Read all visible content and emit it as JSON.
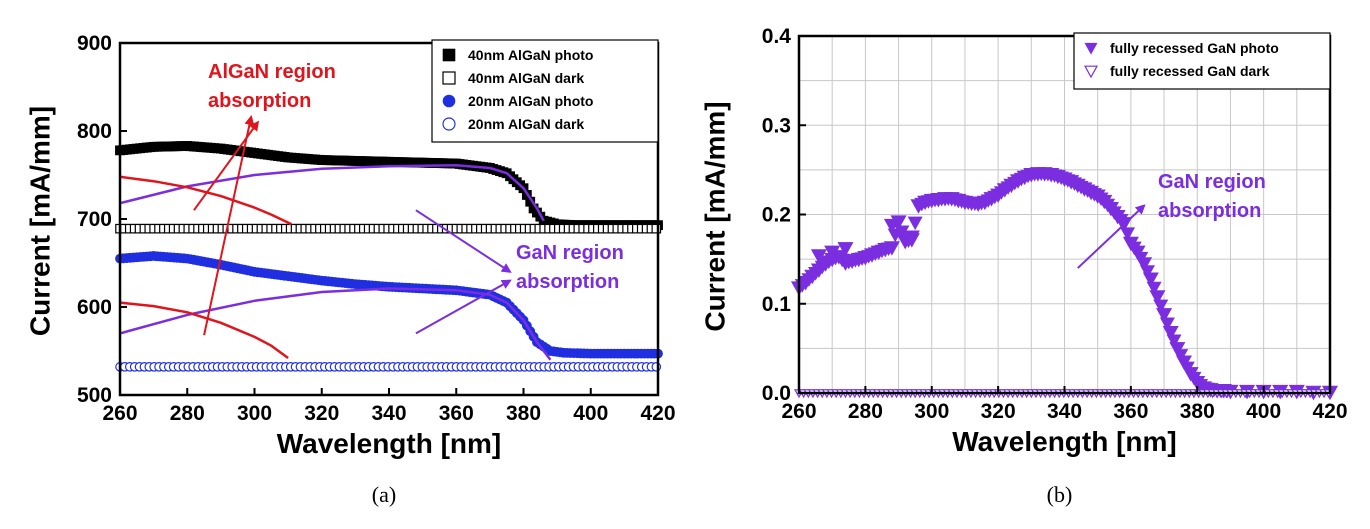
{
  "colors": {
    "black": "#000000",
    "blue": "#1f2fe0",
    "purple": "#7a2ee0",
    "red": "#e0141c",
    "grid": "#c8c8c8"
  },
  "chart_data": [
    {
      "type": "scatter",
      "caption": "(a)",
      "xlabel": "Wavelength [nm]",
      "ylabel": "Current [mA/mm]",
      "xlim": [
        260,
        420
      ],
      "ylim": [
        500,
        900
      ],
      "xticks": [
        260,
        280,
        300,
        320,
        340,
        360,
        380,
        400,
        420
      ],
      "yticks": [
        500,
        600,
        700,
        800,
        900
      ],
      "grid": false,
      "legend_position": "top-right",
      "legend": [
        {
          "label": "40nm AlGaN photo",
          "marker": "filled-square",
          "color": "#000000"
        },
        {
          "label": "40nm AlGaN dark",
          "marker": "open-square",
          "color": "#000000"
        },
        {
          "label": "20nm AlGaN photo",
          "marker": "filled-circle",
          "color": "#1f2fe0"
        },
        {
          "label": "20nm AlGaN dark",
          "marker": "open-circle",
          "color": "#1f2fe0"
        }
      ],
      "series": [
        {
          "name": "40nm AlGaN photo",
          "marker": "filled-square",
          "color": "#000000",
          "x": [
            260,
            270,
            280,
            290,
            300,
            310,
            320,
            330,
            340,
            350,
            360,
            370,
            375,
            380,
            383,
            386,
            390,
            395,
            400,
            410,
            420
          ],
          "y": [
            778,
            782,
            783,
            780,
            775,
            770,
            767,
            766,
            765,
            764,
            763,
            758,
            752,
            735,
            712,
            698,
            694,
            693,
            693,
            693,
            693
          ]
        },
        {
          "name": "40nm AlGaN dark",
          "marker": "open-square",
          "color": "#000000",
          "x": [
            260,
            420
          ],
          "y": [
            689,
            689
          ]
        },
        {
          "name": "20nm AlGaN photo",
          "marker": "filled-circle",
          "color": "#1f2fe0",
          "x": [
            260,
            270,
            280,
            290,
            300,
            310,
            320,
            330,
            340,
            350,
            360,
            370,
            375,
            380,
            384,
            388,
            392,
            400,
            410,
            420
          ],
          "y": [
            655,
            658,
            655,
            648,
            640,
            635,
            630,
            626,
            623,
            621,
            619,
            614,
            605,
            585,
            560,
            550,
            548,
            547,
            547,
            547
          ]
        },
        {
          "name": "20nm AlGaN dark",
          "marker": "open-circle",
          "color": "#1f2fe0",
          "x": [
            260,
            420
          ],
          "y": [
            532,
            532
          ]
        }
      ],
      "fit_lines": [
        {
          "color": "#7a2ee0",
          "x": [
            260,
            280,
            300,
            320,
            340,
            360,
            370,
            375,
            380,
            384,
            386
          ],
          "y": [
            718,
            737,
            750,
            757,
            760,
            761,
            758,
            752,
            735,
            712,
            698
          ]
        },
        {
          "color": "#7a2ee0",
          "x": [
            260,
            280,
            300,
            320,
            340,
            360,
            370,
            375,
            380,
            384,
            388
          ],
          "y": [
            570,
            591,
            607,
            617,
            621,
            619,
            614,
            605,
            585,
            560,
            540
          ]
        },
        {
          "color": "#e0141c",
          "x": [
            260,
            270,
            280,
            290,
            300,
            305,
            311
          ],
          "y": [
            748,
            743,
            736,
            726,
            713,
            705,
            694
          ]
        },
        {
          "color": "#e0141c",
          "x": [
            260,
            270,
            280,
            290,
            300,
            305,
            310
          ],
          "y": [
            605,
            601,
            594,
            582,
            566,
            556,
            542
          ]
        }
      ],
      "annotations": [
        {
          "text_lines": [
            "AlGaN region",
            "absorption"
          ],
          "color": "#e0141c",
          "arrows": [
            {
              "from": [
                282,
                710
              ],
              "to": [
                301,
                810
              ]
            },
            {
              "from": [
                285,
                568
              ],
              "to": [
                299,
                816
              ]
            }
          ]
        },
        {
          "text_lines": [
            "GaN  region",
            "absorption"
          ],
          "color": "#7a2ee0",
          "arrows": [
            {
              "from": [
                348,
                710
              ],
              "to": [
                376,
                640
              ]
            },
            {
              "from": [
                348,
                570
              ],
              "to": [
                376,
                630
              ]
            }
          ]
        }
      ]
    },
    {
      "type": "scatter",
      "caption": "(b)",
      "xlabel": "Wavelength [nm]",
      "ylabel": "Current [mA/mm]",
      "xlim": [
        260,
        420
      ],
      "ylim": [
        0.0,
        0.4
      ],
      "xticks": [
        260,
        280,
        300,
        320,
        340,
        360,
        380,
        400,
        420
      ],
      "yticks": [
        0.0,
        0.1,
        0.2,
        0.3,
        0.4
      ],
      "ytick_labels": [
        "0.0",
        "0.1",
        "0.2",
        "0.3",
        "0.4"
      ],
      "grid": true,
      "legend_position": "top-right",
      "legend": [
        {
          "label": "fully recessed GaN photo",
          "marker": "filled-down-triangle",
          "color": "#7a2ee0"
        },
        {
          "label": "fully recessed GaN dark",
          "marker": "open-down-triangle",
          "color": "#7a2ee0"
        }
      ],
      "series": [
        {
          "name": "fully recessed GaN photo",
          "marker": "filled-down-triangle",
          "color": "#7a2ee0",
          "x": [
            260,
            262,
            264,
            266,
            268,
            270,
            272,
            274,
            276,
            278,
            280,
            282,
            284,
            286,
            288,
            290,
            292,
            294,
            296,
            298,
            300,
            302,
            304,
            306,
            308,
            310,
            312,
            314,
            316,
            318,
            320,
            322,
            324,
            326,
            328,
            330,
            332,
            334,
            336,
            338,
            340,
            342,
            344,
            346,
            348,
            350,
            352,
            354,
            356,
            358,
            360,
            362,
            364,
            366,
            368,
            370,
            372,
            374,
            376,
            378,
            380,
            382,
            384,
            386,
            388,
            390,
            395,
            400,
            405,
            410,
            415,
            420
          ],
          "y": [
            0.118,
            0.124,
            0.131,
            0.138,
            0.145,
            0.15,
            0.153,
            0.146,
            0.148,
            0.15,
            0.152,
            0.155,
            0.158,
            0.161,
            0.163,
            0.192,
            0.17,
            0.172,
            0.21,
            0.214,
            0.216,
            0.217,
            0.218,
            0.218,
            0.216,
            0.214,
            0.213,
            0.212,
            0.214,
            0.218,
            0.222,
            0.228,
            0.233,
            0.238,
            0.242,
            0.245,
            0.246,
            0.246,
            0.245,
            0.243,
            0.24,
            0.237,
            0.233,
            0.229,
            0.225,
            0.221,
            0.215,
            0.207,
            0.198,
            0.19,
            0.168,
            0.158,
            0.145,
            0.128,
            0.108,
            0.088,
            0.068,
            0.05,
            0.035,
            0.022,
            0.012,
            0.006,
            0.004,
            0.003,
            0.003,
            0.002,
            0.002,
            0.002,
            0.002,
            0.002,
            0.001,
            0.001
          ]
        },
        {
          "name": "fully recessed GaN dark",
          "marker": "open-down-triangle",
          "color": "#7a2ee0",
          "x": [
            260,
            420
          ],
          "y": [
            0.0,
            0.0
          ]
        }
      ],
      "extra_markers": [
        {
          "x": 266,
          "y": 0.154
        },
        {
          "x": 270,
          "y": 0.158
        },
        {
          "x": 274,
          "y": 0.162
        },
        {
          "x": 288,
          "y": 0.188
        },
        {
          "x": 294,
          "y": 0.175
        }
      ],
      "annotations": [
        {
          "text_lines": [
            "GaN  region",
            "absorption"
          ],
          "color": "#7a2ee0",
          "arrows": [
            {
              "from": [
                344,
                0.14
              ],
              "to": [
                364,
                0.21
              ]
            }
          ]
        }
      ]
    }
  ]
}
